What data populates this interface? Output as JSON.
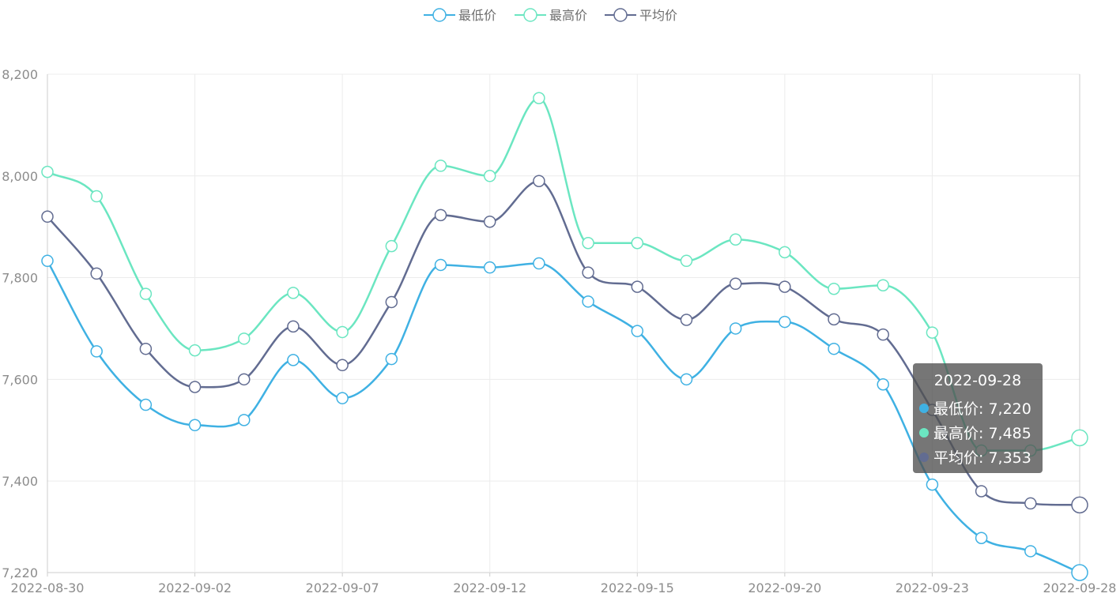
{
  "chart_data": {
    "type": "line",
    "smooth": true,
    "title": "",
    "xlabel": "",
    "ylabel": "",
    "x": [
      "2022-08-30",
      "2022-08-31",
      "2022-09-01",
      "2022-09-02",
      "2022-09-03",
      "2022-09-05",
      "2022-09-07",
      "2022-09-08",
      "2022-09-09",
      "2022-09-12",
      "2022-09-13",
      "2022-09-14",
      "2022-09-15",
      "2022-09-16",
      "2022-09-19",
      "2022-09-20",
      "2022-09-21",
      "2022-09-22",
      "2022-09-23",
      "2022-09-26",
      "2022-09-27",
      "2022-09-28"
    ],
    "x_tick_labels": [
      "2022-08-30",
      "2022-09-02",
      "2022-09-07",
      "2022-09-12",
      "2022-09-15",
      "2022-09-20",
      "2022-09-23",
      "2022-09-28"
    ],
    "y_tick_labels": [
      "7,220",
      "7,400",
      "7,600",
      "7,800",
      "8,000",
      "8,200"
    ],
    "ylim": [
      7220,
      8200
    ],
    "grid": true,
    "legend_position": "top-center",
    "series": [
      {
        "name": "最低价",
        "color": "#3fb1e3",
        "values": [
          7833,
          7655,
          7550,
          7510,
          7520,
          7638,
          7563,
          7640,
          7825,
          7820,
          7828,
          7753,
          7695,
          7600,
          7700,
          7713,
          7660,
          7590,
          7393,
          7288,
          7262,
          7220
        ]
      },
      {
        "name": "最高价",
        "color": "#6be6c1",
        "values": [
          8008,
          7960,
          7768,
          7657,
          7680,
          7770,
          7693,
          7862,
          8020,
          8000,
          8153,
          7868,
          7868,
          7833,
          7875,
          7850,
          7778,
          7785,
          7692,
          7460,
          7460,
          7485
        ]
      },
      {
        "name": "平均价",
        "color": "#626c91",
        "values": [
          7920,
          7808,
          7660,
          7585,
          7600,
          7704,
          7628,
          7752,
          7923,
          7910,
          7990,
          7810,
          7782,
          7717,
          7788,
          7782,
          7718,
          7688,
          7540,
          7380,
          7356,
          7353
        ]
      }
    ]
  },
  "tooltip": {
    "title": "2022-09-28",
    "rows": [
      {
        "text": "最低价: 7,220",
        "color": "#3fb1e3"
      },
      {
        "text": "最高价: 7,485",
        "color": "#6be6c1"
      },
      {
        "text": "平均价: 7,353",
        "color": "#626c91"
      }
    ]
  }
}
